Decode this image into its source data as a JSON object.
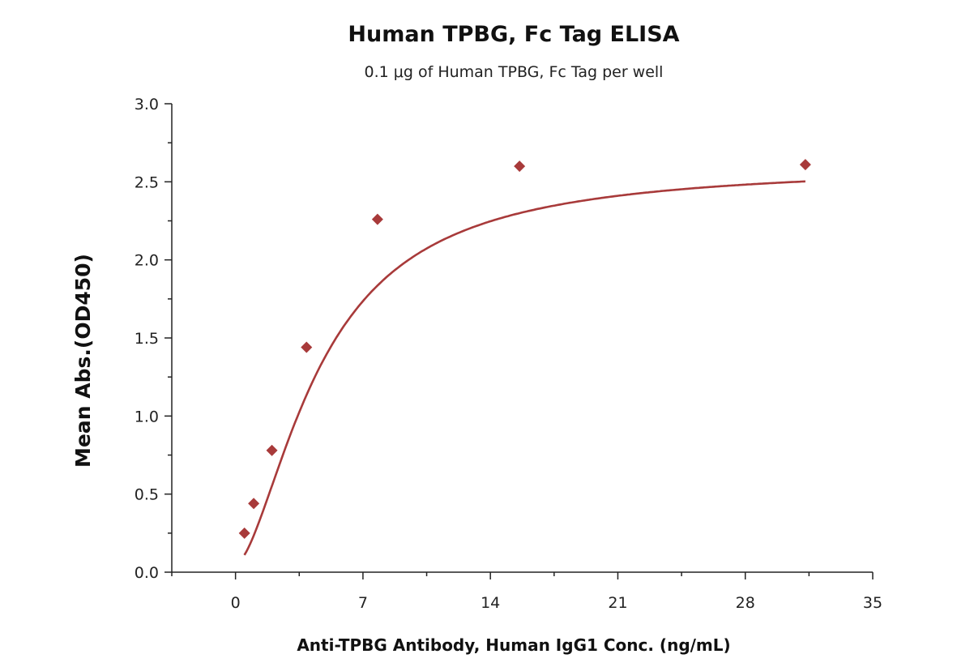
{
  "chart_data": {
    "type": "scatter",
    "title": "Human TPBG, Fc Tag ELISA",
    "subtitle": "0.1 μg of Human TPBG, Fc Tag per well",
    "xlabel": "Anti-TPBG Antibody, Human IgG1 Conc. (ng/mL)",
    "ylabel": "Mean Abs.(OD450)",
    "xlim": [
      -3.5,
      35
    ],
    "ylim": [
      0,
      3.0
    ],
    "x_ticks": [
      0,
      7,
      14,
      21,
      28,
      35
    ],
    "y_ticks": [
      "0.0",
      "0.5",
      "1.0",
      "1.5",
      "2.0",
      "2.5",
      "3.0"
    ],
    "grid": false,
    "series": [
      {
        "x": [
          0.49,
          1.0,
          2.0,
          3.9,
          7.8,
          15.6,
          31.3
        ],
        "y": [
          0.25,
          0.44,
          0.78,
          1.44,
          2.26,
          2.6,
          2.61
        ],
        "marker": "diamond",
        "fit_curve": "4PL"
      }
    ],
    "colors": {
      "series": "#a83a3a"
    }
  }
}
